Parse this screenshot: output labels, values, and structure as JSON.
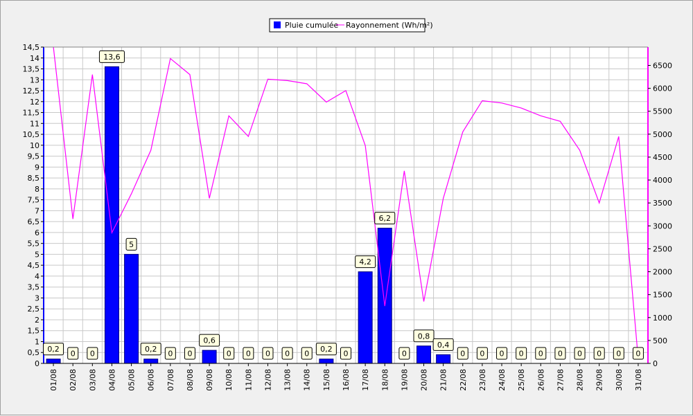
{
  "chart_data": {
    "type": "bar",
    "legend": {
      "placement": "top-center",
      "items": [
        {
          "name": "Pluie cumulée",
          "mark": "square",
          "color": "#0000ff"
        },
        {
          "name": "Rayonnement (Wh/m²)",
          "mark": "line",
          "color": "#ff00ff"
        }
      ]
    },
    "categories": [
      "01/08",
      "02/08",
      "03/08",
      "04/08",
      "05/08",
      "06/08",
      "07/08",
      "08/08",
      "09/08",
      "10/08",
      "11/08",
      "12/08",
      "13/08",
      "14/08",
      "15/08",
      "16/08",
      "17/08",
      "18/08",
      "19/08",
      "20/08",
      "21/08",
      "22/08",
      "23/08",
      "24/08",
      "25/08",
      "26/08",
      "27/08",
      "28/08",
      "29/08",
      "30/08",
      "31/08"
    ],
    "series": [
      {
        "name": "Pluie cumulée",
        "type": "bar",
        "axis": "left",
        "color": "#0000ff",
        "values": [
          0.2,
          0,
          0,
          13.6,
          5,
          0.2,
          0,
          0,
          0.6,
          0,
          0,
          0,
          0,
          0,
          0.2,
          0,
          4.2,
          6.2,
          0,
          0.8,
          0.4,
          0,
          0,
          0,
          0,
          0,
          0,
          0,
          0,
          0,
          0
        ],
        "data_labels": [
          "0,2",
          "0",
          "0",
          "13,6",
          "5",
          "0,2",
          "0",
          "0",
          "0,6",
          "0",
          "0",
          "0",
          "0",
          "0",
          "0,2",
          "0",
          "4,2",
          "6,2",
          "0",
          "0,8",
          "0,4",
          "0",
          "0",
          "0",
          "0",
          "0",
          "0",
          "0",
          "0",
          "0",
          "0"
        ]
      },
      {
        "name": "Rayonnement (Wh/m²)",
        "type": "line",
        "axis": "right",
        "color": "#ff00ff",
        "values": [
          7000,
          3150,
          6300,
          2850,
          3700,
          4650,
          6650,
          6300,
          3600,
          5400,
          4950,
          6200,
          6170,
          6100,
          5700,
          5950,
          4750,
          1250,
          4200,
          1350,
          3600,
          5050,
          5730,
          5680,
          5570,
          5400,
          5280,
          4650,
          3500,
          4950,
          100
        ]
      }
    ],
    "y_left": {
      "ylim": [
        0,
        14.5
      ],
      "ticks": [
        "0",
        "0,5",
        "1",
        "1,5",
        "2",
        "2,5",
        "3",
        "3,5",
        "4",
        "4,5",
        "5",
        "5,5",
        "6",
        "6,5",
        "7",
        "7,5",
        "8",
        "8,5",
        "9",
        "9,5",
        "10",
        "10,5",
        "11",
        "11,5",
        "12",
        "12,5",
        "13",
        "13,5",
        "14",
        "14,5"
      ]
    },
    "y_right": {
      "ylim": [
        0,
        6900
      ],
      "ticks": [
        "0",
        "500",
        "1000",
        "1500",
        "2000",
        "2500",
        "3000",
        "3500",
        "4000",
        "4500",
        "5000",
        "5500",
        "6000",
        "6500"
      ]
    },
    "grid": true
  }
}
